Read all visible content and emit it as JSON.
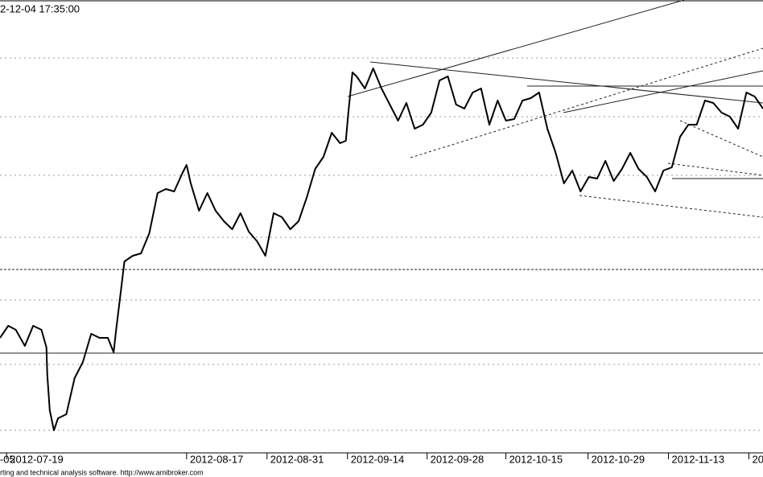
{
  "chart_data": {
    "type": "line",
    "title": "2-12-04 17:35:00",
    "footer": "rting and technical analysis software. http://www.amibroker.com",
    "x": [
      0,
      1,
      1.9,
      3,
      4,
      5,
      5.6,
      5.7,
      6,
      6.5,
      7,
      8,
      9,
      10,
      11,
      12,
      13,
      13.7,
      14,
      14.6,
      15,
      16,
      17,
      18,
      19,
      20,
      21,
      22,
      22.5,
      23,
      24,
      25,
      26,
      27,
      28,
      29,
      30,
      31,
      32,
      33,
      34,
      35,
      36,
      37,
      38,
      39,
      40,
      41,
      41.7,
      42,
      42.5,
      43,
      44,
      45,
      46,
      47,
      48,
      49,
      50,
      51,
      52,
      53,
      54,
      55,
      56,
      57,
      58,
      59,
      60,
      61,
      62,
      63,
      64,
      65,
      66,
      67,
      68,
      69,
      70,
      71,
      72,
      73,
      74,
      75,
      76,
      77,
      78,
      79,
      80,
      81,
      82,
      83,
      84,
      85,
      86,
      87,
      88,
      89,
      90,
      91,
      92
    ],
    "series": [
      {
        "color": "#000000",
        "values": [
          30,
          33,
          32,
          28,
          33,
          32,
          27.6,
          21,
          12,
          7,
          10,
          11,
          20,
          24,
          31,
          30,
          30,
          26.4,
          32,
          42,
          49,
          50.4,
          51,
          56,
          66,
          67,
          66.4,
          71,
          73,
          68.4,
          61.6,
          66,
          61.6,
          59,
          57,
          61,
          56.4,
          54,
          50.4,
          61,
          60,
          57,
          59,
          65,
          72,
          75,
          81,
          78.4,
          79,
          86,
          96,
          95,
          92,
          97,
          92,
          88,
          84,
          88.4,
          82,
          83,
          86,
          94,
          95,
          88,
          87,
          91,
          92,
          83,
          89,
          84,
          84.4,
          89,
          89.6,
          91,
          82,
          76,
          68.4,
          71.6,
          66.4,
          70,
          69.6,
          74,
          69,
          72,
          76,
          72,
          70,
          66.4,
          71.6,
          72.4,
          80,
          83,
          83,
          89,
          88.4,
          86,
          85,
          82,
          91,
          90,
          87
        ]
      }
    ],
    "xlim": [
      0,
      92
    ],
    "ylim": [
      0,
      114
    ],
    "xticks": [
      {
        "value": -0.4,
        "label": "-05"
      },
      {
        "value": 0.8,
        "label": "2012-07-19"
      },
      {
        "value": 22.5,
        "label": "2012-08-17"
      },
      {
        "value": 32.2,
        "label": "2012-08-31"
      },
      {
        "value": 41.9,
        "label": "2012-09-14"
      },
      {
        "value": 51.5,
        "label": "2012-09-28"
      },
      {
        "value": 61,
        "label": "2012-10-15"
      },
      {
        "value": 70.9,
        "label": "2012-10-29"
      },
      {
        "value": 80.6,
        "label": "2012-11-13"
      },
      {
        "value": 90.3,
        "label": "20"
      }
    ]
  }
}
